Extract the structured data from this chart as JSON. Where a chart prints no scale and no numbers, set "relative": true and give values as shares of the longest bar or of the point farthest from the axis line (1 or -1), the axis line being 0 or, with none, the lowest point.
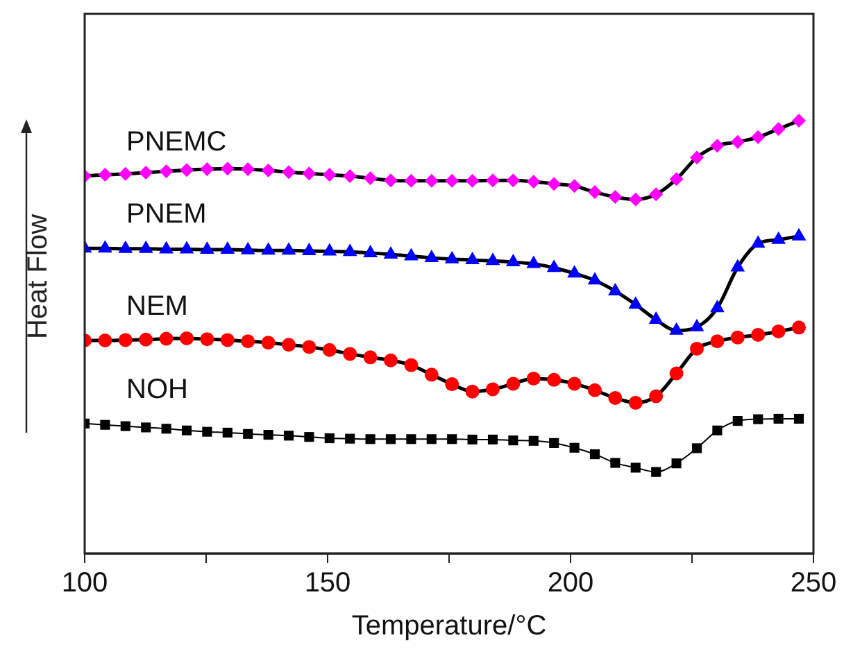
{
  "chart_data": {
    "type": "line",
    "relative": true,
    "xlabel": "Temperature/°C",
    "ylabel": "Heat Flow",
    "xlim": [
      100,
      250
    ],
    "xticks": [
      100,
      {
        "value": 125,
        "label": null
      },
      150,
      {
        "value": 175,
        "label": null
      },
      200,
      {
        "value": 225,
        "label": null
      },
      250
    ],
    "x": [
      100,
      104.2,
      108.4,
      112.6,
      116.8,
      121,
      125.2,
      129.4,
      133.6,
      137.8,
      142,
      146.2,
      150.4,
      154.6,
      158.8,
      163,
      167.2,
      171.4,
      175.6,
      179.8,
      184,
      188.2,
      192.4,
      196.6,
      200.8,
      205,
      209.2,
      213.4,
      217.6,
      221.8,
      226,
      230.2,
      234.4,
      238.6,
      242.8,
      247
    ],
    "series": [
      {
        "name": "NOH",
        "color": "#000000",
        "marker": "square",
        "values": [
          0.3,
          0.297,
          0.294,
          0.291,
          0.288,
          0.284,
          0.281,
          0.279,
          0.276,
          0.274,
          0.272,
          0.269,
          0.266,
          0.265,
          0.264,
          0.264,
          0.264,
          0.264,
          0.264,
          0.263,
          0.263,
          0.261,
          0.26,
          0.255,
          0.244,
          0.229,
          0.209,
          0.198,
          0.188,
          0.208,
          0.243,
          0.284,
          0.306,
          0.31,
          0.311,
          0.311
        ]
      },
      {
        "name": "NEM",
        "color": "#ff0000",
        "marker": "circle",
        "values": [
          0.492,
          0.492,
          0.493,
          0.494,
          0.496,
          0.497,
          0.495,
          0.493,
          0.49,
          0.487,
          0.482,
          0.477,
          0.47,
          0.461,
          0.453,
          0.446,
          0.435,
          0.413,
          0.391,
          0.374,
          0.379,
          0.392,
          0.404,
          0.401,
          0.392,
          0.377,
          0.359,
          0.348,
          0.363,
          0.416,
          0.473,
          0.49,
          0.499,
          0.505,
          0.513,
          0.522
        ]
      },
      {
        "name": "PNEM",
        "color": "#0000ff",
        "marker": "triangle",
        "values": [
          0.705,
          0.705,
          0.704,
          0.704,
          0.703,
          0.703,
          0.702,
          0.702,
          0.701,
          0.7,
          0.7,
          0.699,
          0.698,
          0.697,
          0.694,
          0.691,
          0.687,
          0.683,
          0.68,
          0.678,
          0.676,
          0.673,
          0.669,
          0.66,
          0.647,
          0.631,
          0.606,
          0.575,
          0.54,
          0.515,
          0.523,
          0.567,
          0.661,
          0.716,
          0.725,
          0.733
        ]
      },
      {
        "name": "PNEMC",
        "color": "#ff00ff",
        "marker": "diamond",
        "values": [
          0.872,
          0.875,
          0.877,
          0.88,
          0.883,
          0.886,
          0.888,
          0.889,
          0.888,
          0.885,
          0.881,
          0.878,
          0.875,
          0.872,
          0.867,
          0.862,
          0.861,
          0.861,
          0.861,
          0.861,
          0.862,
          0.862,
          0.859,
          0.854,
          0.849,
          0.835,
          0.824,
          0.818,
          0.83,
          0.865,
          0.915,
          0.942,
          0.951,
          0.962,
          0.981,
          1
        ]
      }
    ]
  }
}
